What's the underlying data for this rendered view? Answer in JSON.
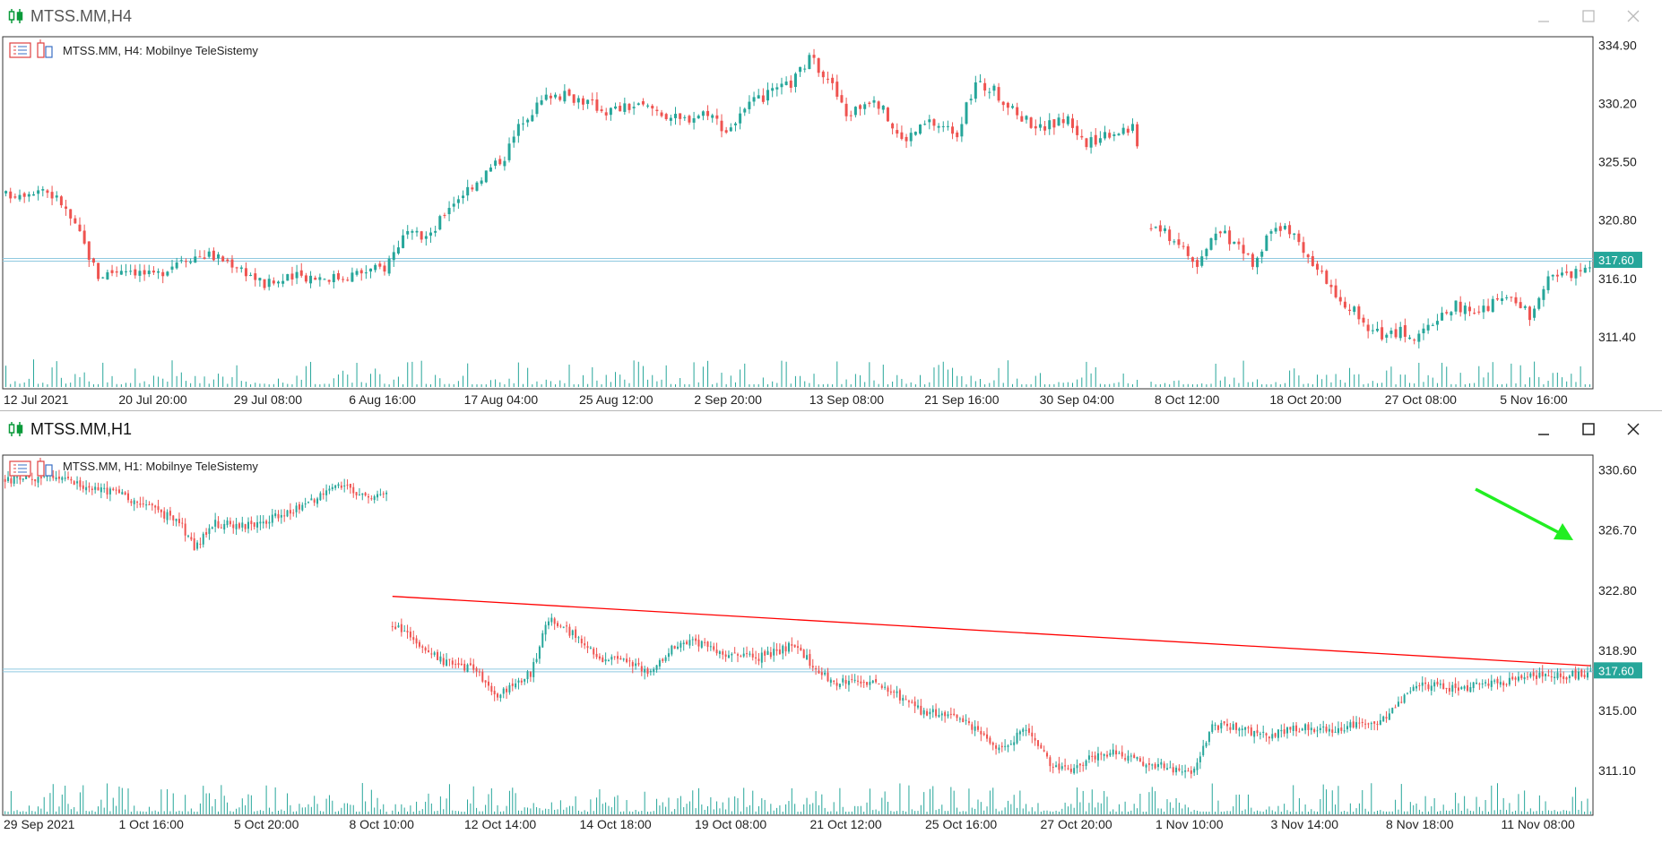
{
  "window1": {
    "title": "MTSS.MM,H4",
    "legend": "MTSS.MM, H4:  Mobilnye TeleSistemy",
    "price_labels": [
      "334.90",
      "330.20",
      "325.50",
      "320.80",
      "316.10",
      "311.40"
    ],
    "current_price": "317.60",
    "time_labels": [
      "12 Jul 2021",
      "20 Jul 20:00",
      "29 Jul 08:00",
      "6 Aug 16:00",
      "17 Aug 04:00",
      "25 Aug 12:00",
      "2 Sep 20:00",
      "13 Sep 08:00",
      "21 Sep 16:00",
      "30 Sep 04:00",
      "8 Oct 12:00",
      "18 Oct 20:00",
      "27 Oct 08:00",
      "5 Nov 16:00"
    ]
  },
  "window2": {
    "title": "MTSS.MM,H1",
    "legend": "MTSS.MM, H1:  Mobilnye TeleSistemy",
    "price_labels": [
      "330.60",
      "326.70",
      "322.80",
      "318.90",
      "315.00",
      "311.10"
    ],
    "current_price": "317.60",
    "time_labels": [
      "29 Sep 2021",
      "1 Oct 16:00",
      "5 Oct 20:00",
      "8 Oct 10:00",
      "12 Oct 14:00",
      "14 Oct 18:00",
      "19 Oct 08:00",
      "21 Oct 12:00",
      "25 Oct 16:00",
      "27 Oct 20:00",
      "1 Nov 10:00",
      "3 Nov 14:00",
      "8 Nov 18:00",
      "11 Nov 08:00"
    ]
  },
  "colors": {
    "bull": "#26a69a",
    "bear": "#ef5350",
    "volume": "#26a69a",
    "price_line": "#8fc9e0",
    "price_tag": "#26a69a",
    "trendline": "#ff0000",
    "arrow": "#22ee22",
    "window_icon": "#0a9a3a"
  },
  "chart_data": [
    {
      "type": "candlestick",
      "title": "MTSS.MM, H4:  Mobilnye TeleSistemy",
      "ylim": [
        307.5,
        335.5
      ],
      "current_price": 317.6,
      "anchors": [
        [
          0,
          322.8
        ],
        [
          8,
          323.4
        ],
        [
          12,
          322.2
        ],
        [
          16,
          319.6
        ],
        [
          20,
          316.3
        ],
        [
          26,
          317.0
        ],
        [
          32,
          316.2
        ],
        [
          38,
          317.8
        ],
        [
          44,
          318.0
        ],
        [
          50,
          317.2
        ],
        [
          56,
          315.6
        ],
        [
          64,
          316.3
        ],
        [
          72,
          316.2
        ],
        [
          82,
          317.0
        ],
        [
          86,
          319.5
        ],
        [
          92,
          319.5
        ],
        [
          96,
          322.0
        ],
        [
          102,
          324.0
        ],
        [
          108,
          326.0
        ],
        [
          112,
          329.0
        ],
        [
          118,
          331.0
        ],
        [
          124,
          330.6
        ],
        [
          130,
          329.6
        ],
        [
          136,
          330.0
        ],
        [
          140,
          329.8
        ],
        [
          146,
          328.8
        ],
        [
          152,
          329.6
        ],
        [
          156,
          328.0
        ],
        [
          162,
          330.3
        ],
        [
          170,
          331.8
        ],
        [
          174,
          333.8
        ],
        [
          178,
          332.4
        ],
        [
          182,
          329.2
        ],
        [
          188,
          330.8
        ],
        [
          194,
          327.2
        ],
        [
          200,
          328.7
        ],
        [
          206,
          327.9
        ],
        [
          210,
          331.8
        ],
        [
          214,
          331.2
        ],
        [
          218,
          329.6
        ],
        [
          224,
          328.2
        ],
        [
          230,
          329.0
        ],
        [
          234,
          326.8
        ],
        [
          238,
          327.8
        ],
        [
          244,
          328.3
        ],
        [
          248,
          320.5
        ],
        [
          254,
          319.0
        ],
        [
          258,
          317.0
        ],
        [
          262,
          320.0
        ],
        [
          266,
          319.0
        ],
        [
          270,
          317.4
        ],
        [
          274,
          319.7
        ],
        [
          278,
          320.1
        ],
        [
          282,
          317.4
        ],
        [
          286,
          315.8
        ],
        [
          290,
          314.2
        ],
        [
          294,
          312.6
        ],
        [
          298,
          311.3
        ],
        [
          302,
          311.9
        ],
        [
          306,
          311.3
        ],
        [
          310,
          313.0
        ],
        [
          314,
          314.0
        ],
        [
          318,
          313.2
        ],
        [
          322,
          314.0
        ],
        [
          326,
          314.7
        ],
        [
          330,
          313.2
        ],
        [
          334,
          316.5
        ],
        [
          338,
          316.3
        ],
        [
          343,
          317.3
        ]
      ],
      "gaps": [
        [
          245,
          248
        ]
      ]
    },
    {
      "type": "candlestick",
      "title": "MTSS.MM, H1:  Mobilnye TeleSistemy",
      "ylim": [
        308.5,
        331.5
      ],
      "current_price": 317.6,
      "anchors": [
        [
          0,
          329.9
        ],
        [
          14,
          330.1
        ],
        [
          28,
          329.5
        ],
        [
          40,
          328.9
        ],
        [
          52,
          327.8
        ],
        [
          58,
          327.2
        ],
        [
          63,
          325.6
        ],
        [
          70,
          327.1
        ],
        [
          84,
          327.0
        ],
        [
          100,
          328.4
        ],
        [
          112,
          329.6
        ],
        [
          120,
          328.9
        ],
        [
          126,
          329.0
        ],
        [
          127,
          329.2
        ],
        [
          129,
          320.6
        ],
        [
          138,
          319.4
        ],
        [
          146,
          318.1
        ],
        [
          155,
          317.8
        ],
        [
          164,
          316.1
        ],
        [
          175,
          317.4
        ],
        [
          181,
          321.0
        ],
        [
          190,
          319.8
        ],
        [
          198,
          318.4
        ],
        [
          208,
          318.2
        ],
        [
          216,
          317.4
        ],
        [
          222,
          319.2
        ],
        [
          230,
          319.5
        ],
        [
          240,
          318.6
        ],
        [
          250,
          318.4
        ],
        [
          262,
          319.2
        ],
        [
          276,
          316.8
        ],
        [
          290,
          316.9
        ],
        [
          305,
          315.0
        ],
        [
          318,
          314.5
        ],
        [
          332,
          312.5
        ],
        [
          340,
          313.8
        ],
        [
          348,
          311.5
        ],
        [
          355,
          311.0
        ],
        [
          362,
          312.0
        ],
        [
          370,
          312.3
        ],
        [
          380,
          311.6
        ],
        [
          395,
          311.0
        ],
        [
          402,
          314.0
        ],
        [
          410,
          314.0
        ],
        [
          420,
          313.3
        ],
        [
          432,
          313.9
        ],
        [
          442,
          313.8
        ],
        [
          458,
          314.3
        ],
        [
          470,
          316.8
        ],
        [
          480,
          316.4
        ],
        [
          490,
          316.6
        ],
        [
          510,
          317.2
        ],
        [
          522,
          317.3
        ],
        [
          528,
          317.5
        ]
      ],
      "gaps": [
        [
          127,
          129
        ]
      ],
      "trendline": [
        [
          129,
          322.4
        ],
        [
          528,
          317.9
        ]
      ]
    }
  ]
}
